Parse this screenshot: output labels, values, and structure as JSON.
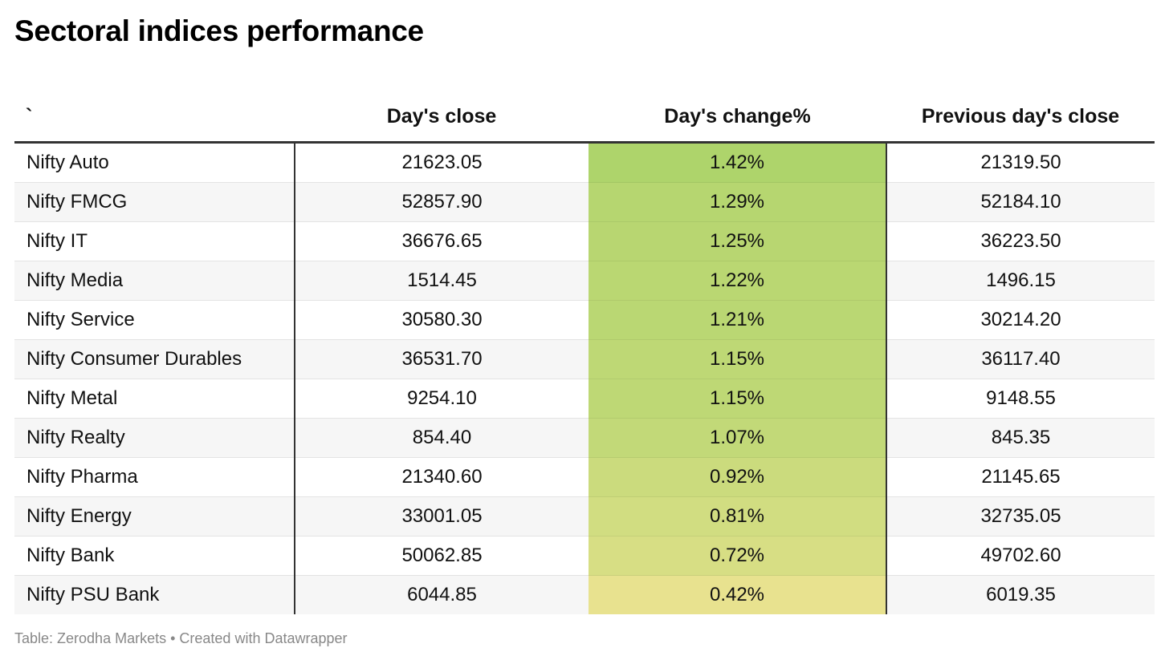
{
  "title": "Sectoral indices performance",
  "footer": {
    "source": "Table: Zerodha Markets",
    "separator": " • ",
    "credit": "Created with Datawrapper"
  },
  "colors": {
    "scale_high": "#aed46b",
    "scale_low": "#e8e28f"
  },
  "chart_data": {
    "type": "table",
    "columns": [
      "`",
      "Day's close",
      "Day's change%",
      "Previous day's close"
    ],
    "rows": [
      {
        "name": "Nifty Auto",
        "close": "21623.05",
        "change": "1.42%",
        "prev": "21319.50",
        "change_value": 1.42
      },
      {
        "name": "Nifty FMCG",
        "close": "52857.90",
        "change": "1.29%",
        "prev": "52184.10",
        "change_value": 1.29
      },
      {
        "name": "Nifty IT",
        "close": "36676.65",
        "change": "1.25%",
        "prev": "36223.50",
        "change_value": 1.25
      },
      {
        "name": "Nifty Media",
        "close": "1514.45",
        "change": "1.22%",
        "prev": "1496.15",
        "change_value": 1.22
      },
      {
        "name": "Nifty Service",
        "close": "30580.30",
        "change": "1.21%",
        "prev": "30214.20",
        "change_value": 1.21
      },
      {
        "name": "Nifty Consumer Durables",
        "close": "36531.70",
        "change": "1.15%",
        "prev": "36117.40",
        "change_value": 1.15
      },
      {
        "name": "Nifty Metal",
        "close": "9254.10",
        "change": "1.15%",
        "prev": "9148.55",
        "change_value": 1.15
      },
      {
        "name": "Nifty Realty",
        "close": "854.40",
        "change": "1.07%",
        "prev": "845.35",
        "change_value": 1.07
      },
      {
        "name": "Nifty Pharma",
        "close": "21340.60",
        "change": "0.92%",
        "prev": "21145.65",
        "change_value": 0.92
      },
      {
        "name": "Nifty Energy",
        "close": "33001.05",
        "change": "0.81%",
        "prev": "32735.05",
        "change_value": 0.81
      },
      {
        "name": "Nifty Bank",
        "close": "50062.85",
        "change": "0.72%",
        "prev": "49702.60",
        "change_value": 0.72
      },
      {
        "name": "Nifty PSU Bank",
        "close": "6044.85",
        "change": "0.42%",
        "prev": "6019.35",
        "change_value": 0.42
      }
    ]
  }
}
